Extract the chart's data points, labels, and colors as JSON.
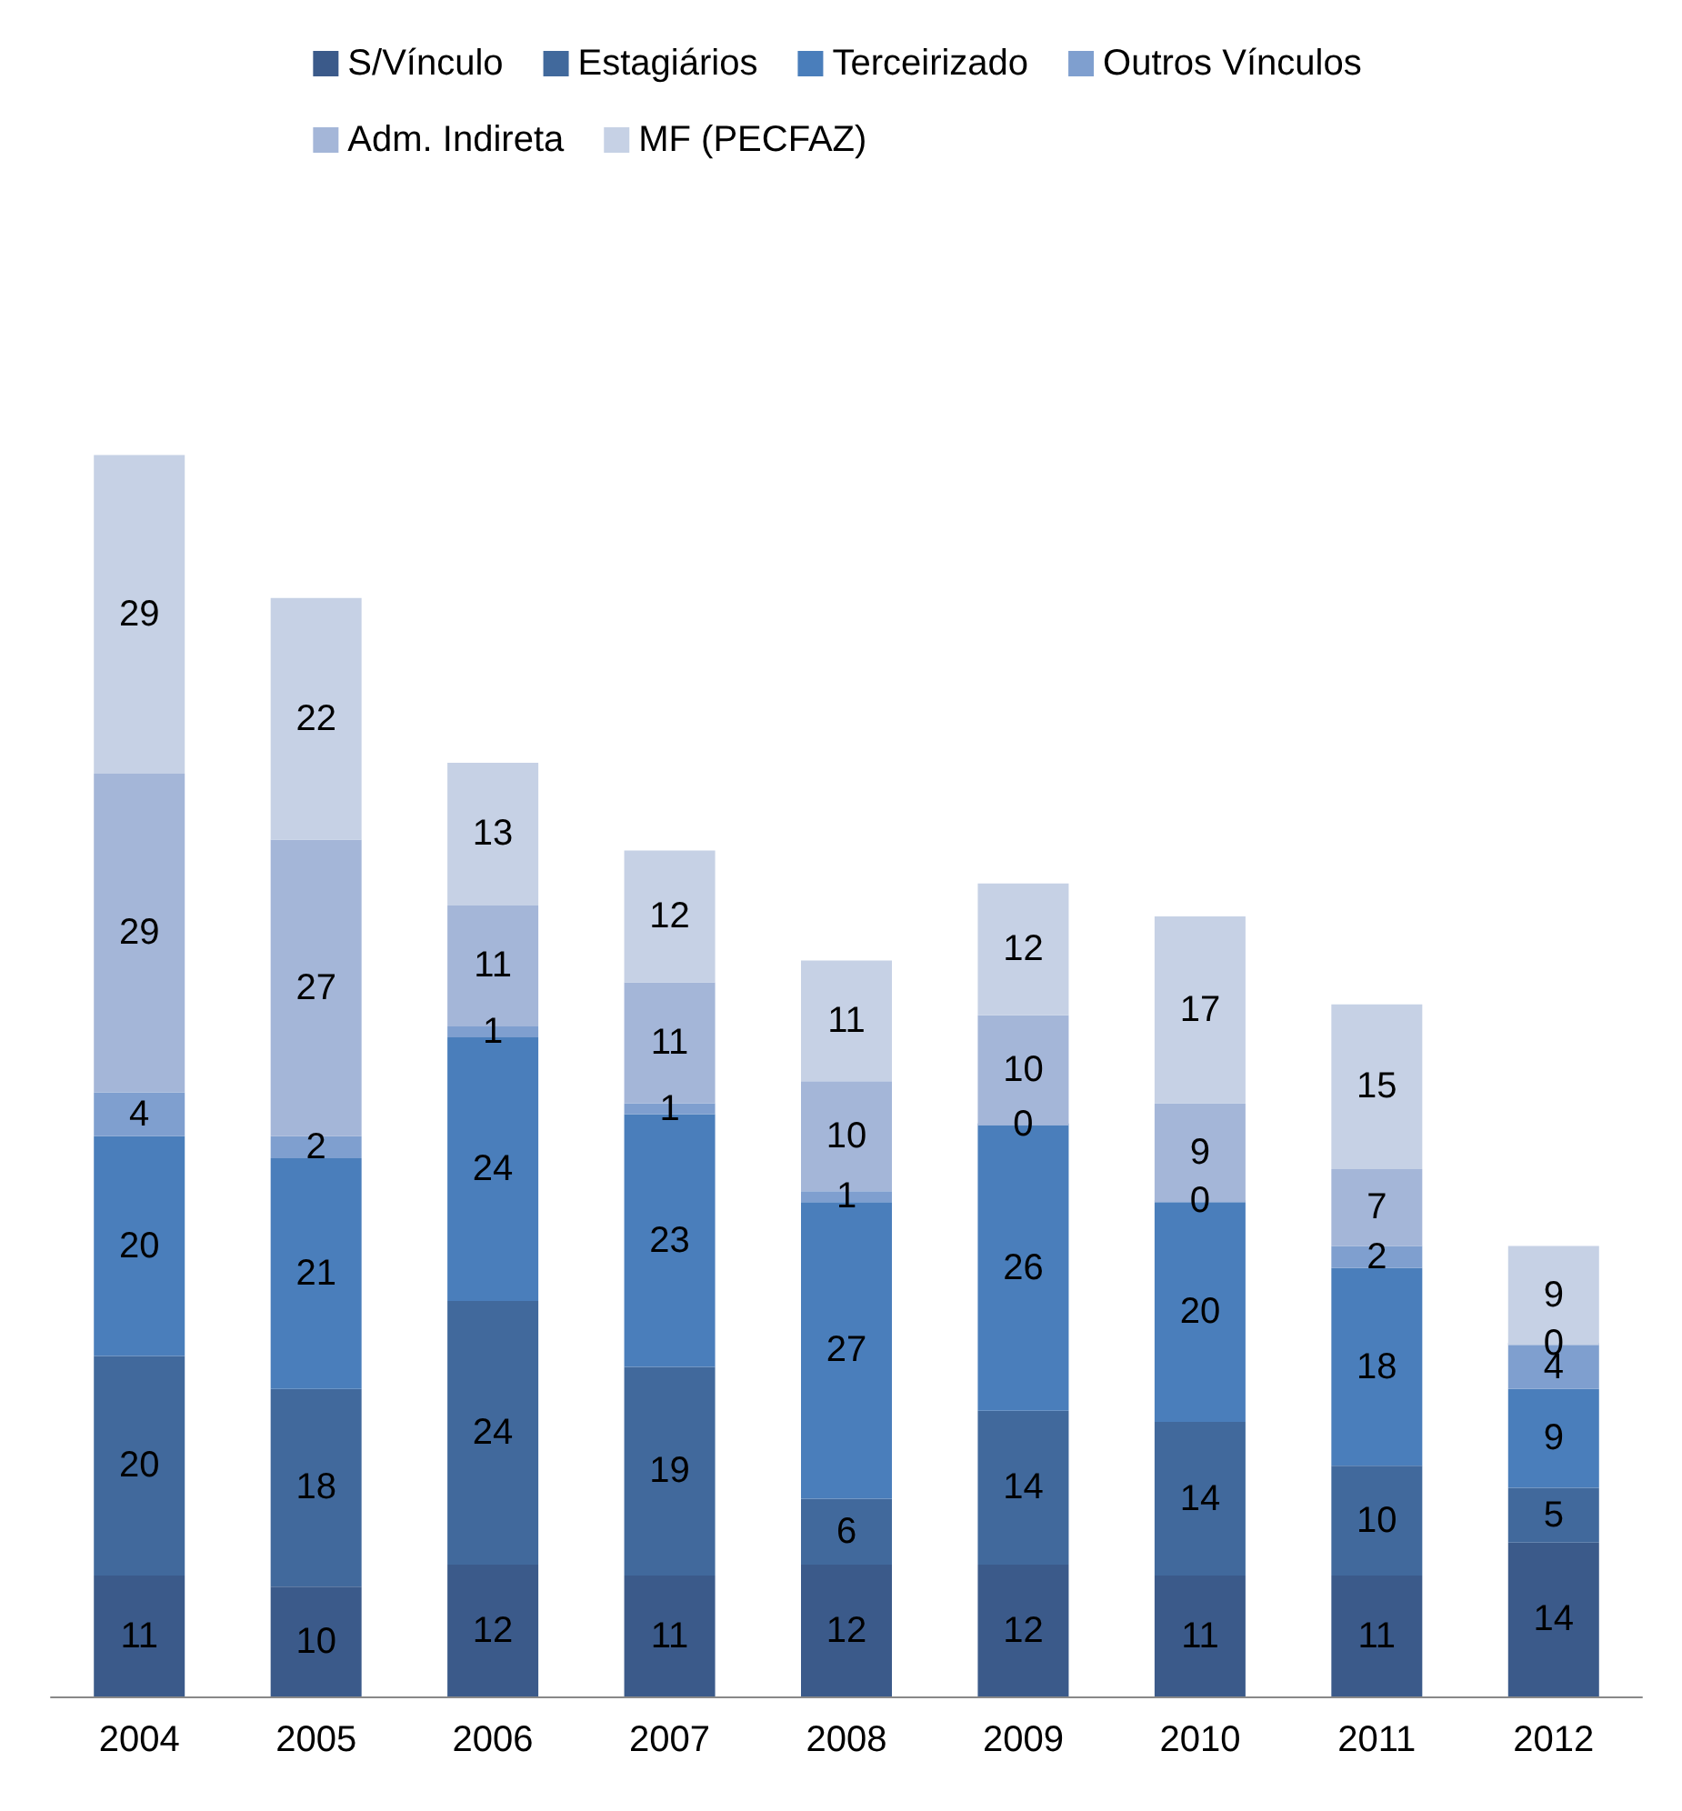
{
  "chart_data": {
    "type": "bar",
    "stacked": true,
    "data_labels": true,
    "legend": "top",
    "grid": false,
    "tick_labels": "x",
    "categories": [
      "2004",
      "2005",
      "2006",
      "2007",
      "2008",
      "2009",
      "2010",
      "2011",
      "2012"
    ],
    "series": [
      {
        "name": "S/Vínculo",
        "color": "#3b5a8a",
        "values": [
          11,
          10,
          12,
          11,
          12,
          12,
          11,
          11,
          14
        ]
      },
      {
        "name": "Estagiários",
        "color": "#41699c",
        "values": [
          20,
          18,
          24,
          19,
          6,
          14,
          14,
          10,
          5
        ]
      },
      {
        "name": "Terceirizado",
        "color": "#4a7ebb",
        "values": [
          20,
          21,
          24,
          23,
          27,
          26,
          20,
          18,
          9
        ]
      },
      {
        "name": "Outros Vínculos",
        "color": "#7f9fcf",
        "values": [
          4,
          2,
          1,
          1,
          1,
          0,
          0,
          2,
          4
        ]
      },
      {
        "name": "Adm. Indireta",
        "color": "#a4b6d8",
        "values": [
          29,
          27,
          11,
          11,
          10,
          10,
          9,
          7,
          0
        ]
      },
      {
        "name": "MF (PECFAZ)",
        "color": "#c6d1e5",
        "values": [
          29,
          22,
          13,
          12,
          11,
          12,
          17,
          15,
          9
        ]
      }
    ]
  }
}
